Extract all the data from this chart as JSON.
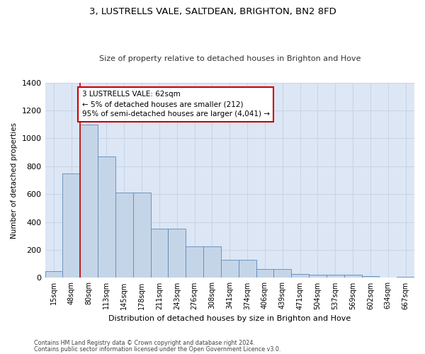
{
  "title_line1": "3, LUSTRELLS VALE, SALTDEAN, BRIGHTON, BN2 8FD",
  "title_line2": "Size of property relative to detached houses in Brighton and Hove",
  "xlabel": "Distribution of detached houses by size in Brighton and Hove",
  "ylabel": "Number of detached properties",
  "footnote1": "Contains HM Land Registry data © Crown copyright and database right 2024.",
  "footnote2": "Contains public sector information licensed under the Open Government Licence v3.0.",
  "bin_labels": [
    "15sqm",
    "48sqm",
    "80sqm",
    "113sqm",
    "145sqm",
    "178sqm",
    "211sqm",
    "243sqm",
    "276sqm",
    "308sqm",
    "341sqm",
    "374sqm",
    "406sqm",
    "439sqm",
    "471sqm",
    "504sqm",
    "537sqm",
    "569sqm",
    "602sqm",
    "634sqm",
    "667sqm"
  ],
  "bar_values": [
    50,
    750,
    1100,
    870,
    610,
    610,
    350,
    350,
    225,
    225,
    130,
    130,
    65,
    65,
    30,
    25,
    20,
    20,
    12,
    2,
    8
  ],
  "bar_color": "#c5d5e8",
  "bar_edge_color": "#5b8ab8",
  "grid_color": "#c8d4e4",
  "annotation_text": "3 LUSTRELLS VALE: 62sqm\n← 5% of detached houses are smaller (212)\n95% of semi-detached houses are larger (4,041) →",
  "annotation_box_color": "#ffffff",
  "annotation_box_edge": "#cc0000",
  "vline_color": "#cc0000",
  "vline_x": 1.5,
  "ylim": [
    0,
    1400
  ],
  "background_color": "#dce6f5"
}
